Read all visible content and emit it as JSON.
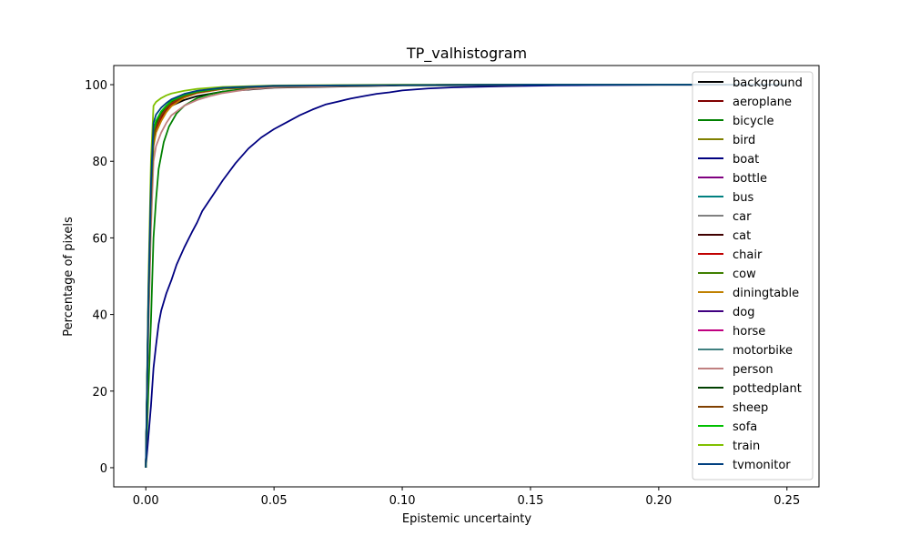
{
  "chart_data": {
    "type": "line",
    "title": "TP_valhistogram",
    "xlabel": "Epistemic uncertainty",
    "ylabel": "Percentage of pixels",
    "xlim": [
      -0.0125,
      0.2625
    ],
    "ylim": [
      -5,
      105
    ],
    "xticks": [
      0.0,
      0.05,
      0.1,
      0.15,
      0.2,
      0.25
    ],
    "xtick_labels": [
      "0.00",
      "0.05",
      "0.10",
      "0.15",
      "0.20",
      "0.25"
    ],
    "yticks": [
      0,
      20,
      40,
      60,
      80,
      100
    ],
    "ytick_labels": [
      "0",
      "20",
      "40",
      "60",
      "80",
      "100"
    ],
    "grid": false,
    "legend_position": "top-right",
    "series": [
      {
        "name": "background",
        "color": "#000000",
        "x": [
          0,
          0.001,
          0.002,
          0.003,
          0.004,
          0.006,
          0.008,
          0.01,
          0.015,
          0.02,
          0.03,
          0.05,
          0.1,
          0.15,
          0.25
        ],
        "y": [
          0,
          45,
          75,
          88,
          90.5,
          92.5,
          93.5,
          94.5,
          96,
          97,
          98.2,
          99.2,
          99.8,
          99.9,
          100
        ]
      },
      {
        "name": "aeroplane",
        "color": "#800000",
        "x": [
          0,
          0.001,
          0.002,
          0.003,
          0.004,
          0.006,
          0.008,
          0.01,
          0.015,
          0.02,
          0.03,
          0.05,
          0.1,
          0.15,
          0.25
        ],
        "y": [
          0,
          40,
          70,
          86,
          88.5,
          91.5,
          93.5,
          95,
          97,
          98,
          99,
          99.6,
          99.9,
          100,
          100
        ]
      },
      {
        "name": "bicycle",
        "color": "#008000",
        "x": [
          0,
          0.001,
          0.002,
          0.003,
          0.004,
          0.005,
          0.007,
          0.009,
          0.012,
          0.015,
          0.02,
          0.025,
          0.03,
          0.04,
          0.05,
          0.06,
          0.08,
          0.1,
          0.15,
          0.25
        ],
        "y": [
          0,
          20,
          38,
          60,
          70,
          78,
          85,
          89,
          92.5,
          94.5,
          96.5,
          97.5,
          98.2,
          99,
          99.4,
          99.6,
          99.8,
          99.9,
          100,
          100
        ]
      },
      {
        "name": "bird",
        "color": "#808000",
        "x": [
          0,
          0.001,
          0.002,
          0.003,
          0.004,
          0.006,
          0.008,
          0.01,
          0.015,
          0.02,
          0.03,
          0.05,
          0.1,
          0.15,
          0.25
        ],
        "y": [
          0,
          42,
          72,
          87,
          90,
          93,
          94.5,
          95.5,
          97,
          98,
          99,
          99.6,
          99.9,
          100,
          100
        ]
      },
      {
        "name": "boat",
        "color": "#000080",
        "x": [
          0,
          0.001,
          0.002,
          0.003,
          0.004,
          0.005,
          0.006,
          0.008,
          0.01,
          0.012,
          0.015,
          0.018,
          0.02,
          0.022,
          0.025,
          0.028,
          0.03,
          0.035,
          0.04,
          0.045,
          0.05,
          0.055,
          0.06,
          0.065,
          0.07,
          0.075,
          0.08,
          0.085,
          0.09,
          0.095,
          0.1,
          0.11,
          0.12,
          0.14,
          0.16,
          0.18,
          0.2,
          0.22,
          0.25
        ],
        "y": [
          0,
          8,
          16,
          26,
          32,
          37.5,
          41,
          45.5,
          49,
          53,
          57.5,
          61.5,
          64,
          67,
          70,
          73,
          75,
          79.5,
          83.3,
          86.2,
          88.4,
          90.2,
          92,
          93.5,
          94.8,
          95.6,
          96.4,
          97,
          97.6,
          98,
          98.5,
          99,
          99.3,
          99.6,
          99.8,
          99.9,
          100,
          100,
          100
        ]
      },
      {
        "name": "bottle",
        "color": "#800080",
        "x": [
          0,
          0.001,
          0.002,
          0.003,
          0.004,
          0.006,
          0.008,
          0.01,
          0.015,
          0.02,
          0.03,
          0.05,
          0.1,
          0.15,
          0.25
        ],
        "y": [
          0,
          42,
          71,
          86,
          89.5,
          92.5,
          94,
          95.5,
          97,
          98,
          99,
          99.6,
          99.9,
          100,
          100
        ]
      },
      {
        "name": "bus",
        "color": "#008080",
        "x": [
          0,
          0.001,
          0.002,
          0.003,
          0.004,
          0.006,
          0.008,
          0.01,
          0.015,
          0.02,
          0.03,
          0.05,
          0.1,
          0.15,
          0.25
        ],
        "y": [
          0,
          44,
          73,
          88,
          90.5,
          93,
          94.5,
          95.8,
          97.3,
          98.2,
          99.1,
          99.7,
          99.9,
          100,
          100
        ]
      },
      {
        "name": "car",
        "color": "#808080",
        "x": [
          0,
          0.001,
          0.002,
          0.003,
          0.004,
          0.006,
          0.008,
          0.01,
          0.015,
          0.02,
          0.03,
          0.05,
          0.1,
          0.15,
          0.25
        ],
        "y": [
          0,
          43,
          72,
          87,
          90,
          92.8,
          94.2,
          95.5,
          97,
          98,
          99,
          99.6,
          99.9,
          100,
          100
        ]
      },
      {
        "name": "cat",
        "color": "#400000",
        "x": [
          0,
          0.001,
          0.002,
          0.003,
          0.004,
          0.006,
          0.008,
          0.01,
          0.015,
          0.02,
          0.03,
          0.05,
          0.1,
          0.15,
          0.25
        ],
        "y": [
          0,
          41,
          70,
          85.5,
          88.5,
          91.5,
          93.5,
          95,
          97,
          98,
          99,
          99.6,
          99.9,
          100,
          100
        ]
      },
      {
        "name": "chair",
        "color": "#c00000",
        "x": [
          0,
          0.001,
          0.002,
          0.003,
          0.004,
          0.006,
          0.008,
          0.01,
          0.015,
          0.02,
          0.03,
          0.05,
          0.1,
          0.15,
          0.25
        ],
        "y": [
          0,
          40,
          69,
          85,
          88,
          91,
          93,
          94.6,
          96.8,
          97.9,
          98.9,
          99.6,
          99.9,
          100,
          100
        ]
      },
      {
        "name": "cow",
        "color": "#408000",
        "x": [
          0,
          0.001,
          0.002,
          0.003,
          0.004,
          0.006,
          0.008,
          0.01,
          0.015,
          0.02,
          0.03,
          0.05,
          0.1,
          0.15,
          0.25
        ],
        "y": [
          0,
          42,
          72,
          87,
          89.5,
          92.5,
          94,
          95.3,
          97,
          98,
          99,
          99.6,
          99.9,
          100,
          100
        ]
      },
      {
        "name": "diningtable",
        "color": "#c08000",
        "x": [
          0,
          0.001,
          0.002,
          0.003,
          0.004,
          0.006,
          0.008,
          0.01,
          0.015,
          0.02,
          0.03,
          0.05,
          0.1,
          0.15,
          0.25
        ],
        "y": [
          0,
          38,
          67,
          84,
          87.5,
          90.5,
          92.8,
          94.4,
          96.6,
          97.8,
          98.9,
          99.5,
          99.9,
          100,
          100
        ]
      },
      {
        "name": "dog",
        "color": "#400080",
        "x": [
          0,
          0.001,
          0.002,
          0.003,
          0.004,
          0.006,
          0.008,
          0.01,
          0.015,
          0.02,
          0.03,
          0.05,
          0.1,
          0.15,
          0.25
        ],
        "y": [
          0,
          41,
          70,
          86,
          89,
          92,
          93.8,
          95.2,
          97,
          98,
          99,
          99.6,
          99.9,
          100,
          100
        ]
      },
      {
        "name": "horse",
        "color": "#c00080",
        "x": [
          0,
          0.001,
          0.002,
          0.003,
          0.004,
          0.006,
          0.008,
          0.01,
          0.015,
          0.02,
          0.03,
          0.05,
          0.1,
          0.15,
          0.25
        ],
        "y": [
          0,
          42,
          71,
          86.5,
          89.5,
          92.3,
          94,
          95.4,
          97,
          98,
          99,
          99.6,
          99.9,
          100,
          100
        ]
      },
      {
        "name": "motorbike",
        "color": "#408080",
        "x": [
          0,
          0.001,
          0.002,
          0.003,
          0.004,
          0.006,
          0.008,
          0.01,
          0.015,
          0.02,
          0.03,
          0.05,
          0.1,
          0.15,
          0.25
        ],
        "y": [
          0,
          43,
          72,
          87.5,
          90,
          92.8,
          94.3,
          95.6,
          97.2,
          98.1,
          99.1,
          99.7,
          99.9,
          100,
          100
        ]
      },
      {
        "name": "person",
        "color": "#c08080",
        "x": [
          0,
          0.001,
          0.002,
          0.003,
          0.004,
          0.006,
          0.008,
          0.01,
          0.015,
          0.02,
          0.025,
          0.03,
          0.04,
          0.05,
          0.1,
          0.15,
          0.25
        ],
        "y": [
          0,
          35,
          62,
          80,
          84,
          87.5,
          90,
          92,
          94.5,
          96,
          97,
          97.8,
          98.8,
          99.3,
          99.9,
          100,
          100
        ]
      },
      {
        "name": "pottedplant",
        "color": "#004000",
        "x": [
          0,
          0.001,
          0.002,
          0.003,
          0.004,
          0.006,
          0.008,
          0.01,
          0.015,
          0.02,
          0.03,
          0.05,
          0.1,
          0.15,
          0.25
        ],
        "y": [
          0,
          42,
          72,
          87,
          90,
          92.8,
          94.3,
          95.6,
          97.2,
          98.1,
          99.1,
          99.7,
          99.9,
          100,
          100
        ]
      },
      {
        "name": "sheep",
        "color": "#804000",
        "x": [
          0,
          0.001,
          0.002,
          0.003,
          0.004,
          0.006,
          0.008,
          0.01,
          0.015,
          0.02,
          0.03,
          0.05,
          0.1,
          0.15,
          0.25
        ],
        "y": [
          0,
          41,
          70,
          86,
          89,
          92,
          93.8,
          95.2,
          97,
          98,
          99,
          99.6,
          99.9,
          100,
          100
        ]
      },
      {
        "name": "sofa",
        "color": "#00c000",
        "x": [
          0,
          0.001,
          0.002,
          0.003,
          0.004,
          0.006,
          0.008,
          0.01,
          0.015,
          0.02,
          0.03,
          0.05,
          0.1,
          0.15,
          0.25
        ],
        "y": [
          0,
          43,
          73,
          88,
          90.5,
          93,
          94.5,
          95.8,
          97.3,
          98.2,
          99.1,
          99.7,
          99.9,
          100,
          100
        ]
      },
      {
        "name": "train",
        "color": "#80c000",
        "x": [
          0,
          0.001,
          0.002,
          0.003,
          0.004,
          0.006,
          0.008,
          0.01,
          0.015,
          0.02,
          0.03,
          0.05,
          0.1,
          0.15,
          0.25
        ],
        "y": [
          0,
          48,
          80,
          94.5,
          95.5,
          96.5,
          97.2,
          97.7,
          98.4,
          98.9,
          99.4,
          99.8,
          100,
          100,
          100
        ]
      },
      {
        "name": "tvmonitor",
        "color": "#004080",
        "x": [
          0,
          0.001,
          0.002,
          0.003,
          0.004,
          0.006,
          0.008,
          0.01,
          0.015,
          0.02,
          0.03,
          0.05,
          0.1,
          0.15,
          0.25
        ],
        "y": [
          0,
          44,
          74,
          90,
          92.2,
          94,
          95.2,
          96.2,
          97.6,
          98.4,
          99.2,
          99.7,
          99.9,
          100,
          100
        ]
      }
    ]
  }
}
